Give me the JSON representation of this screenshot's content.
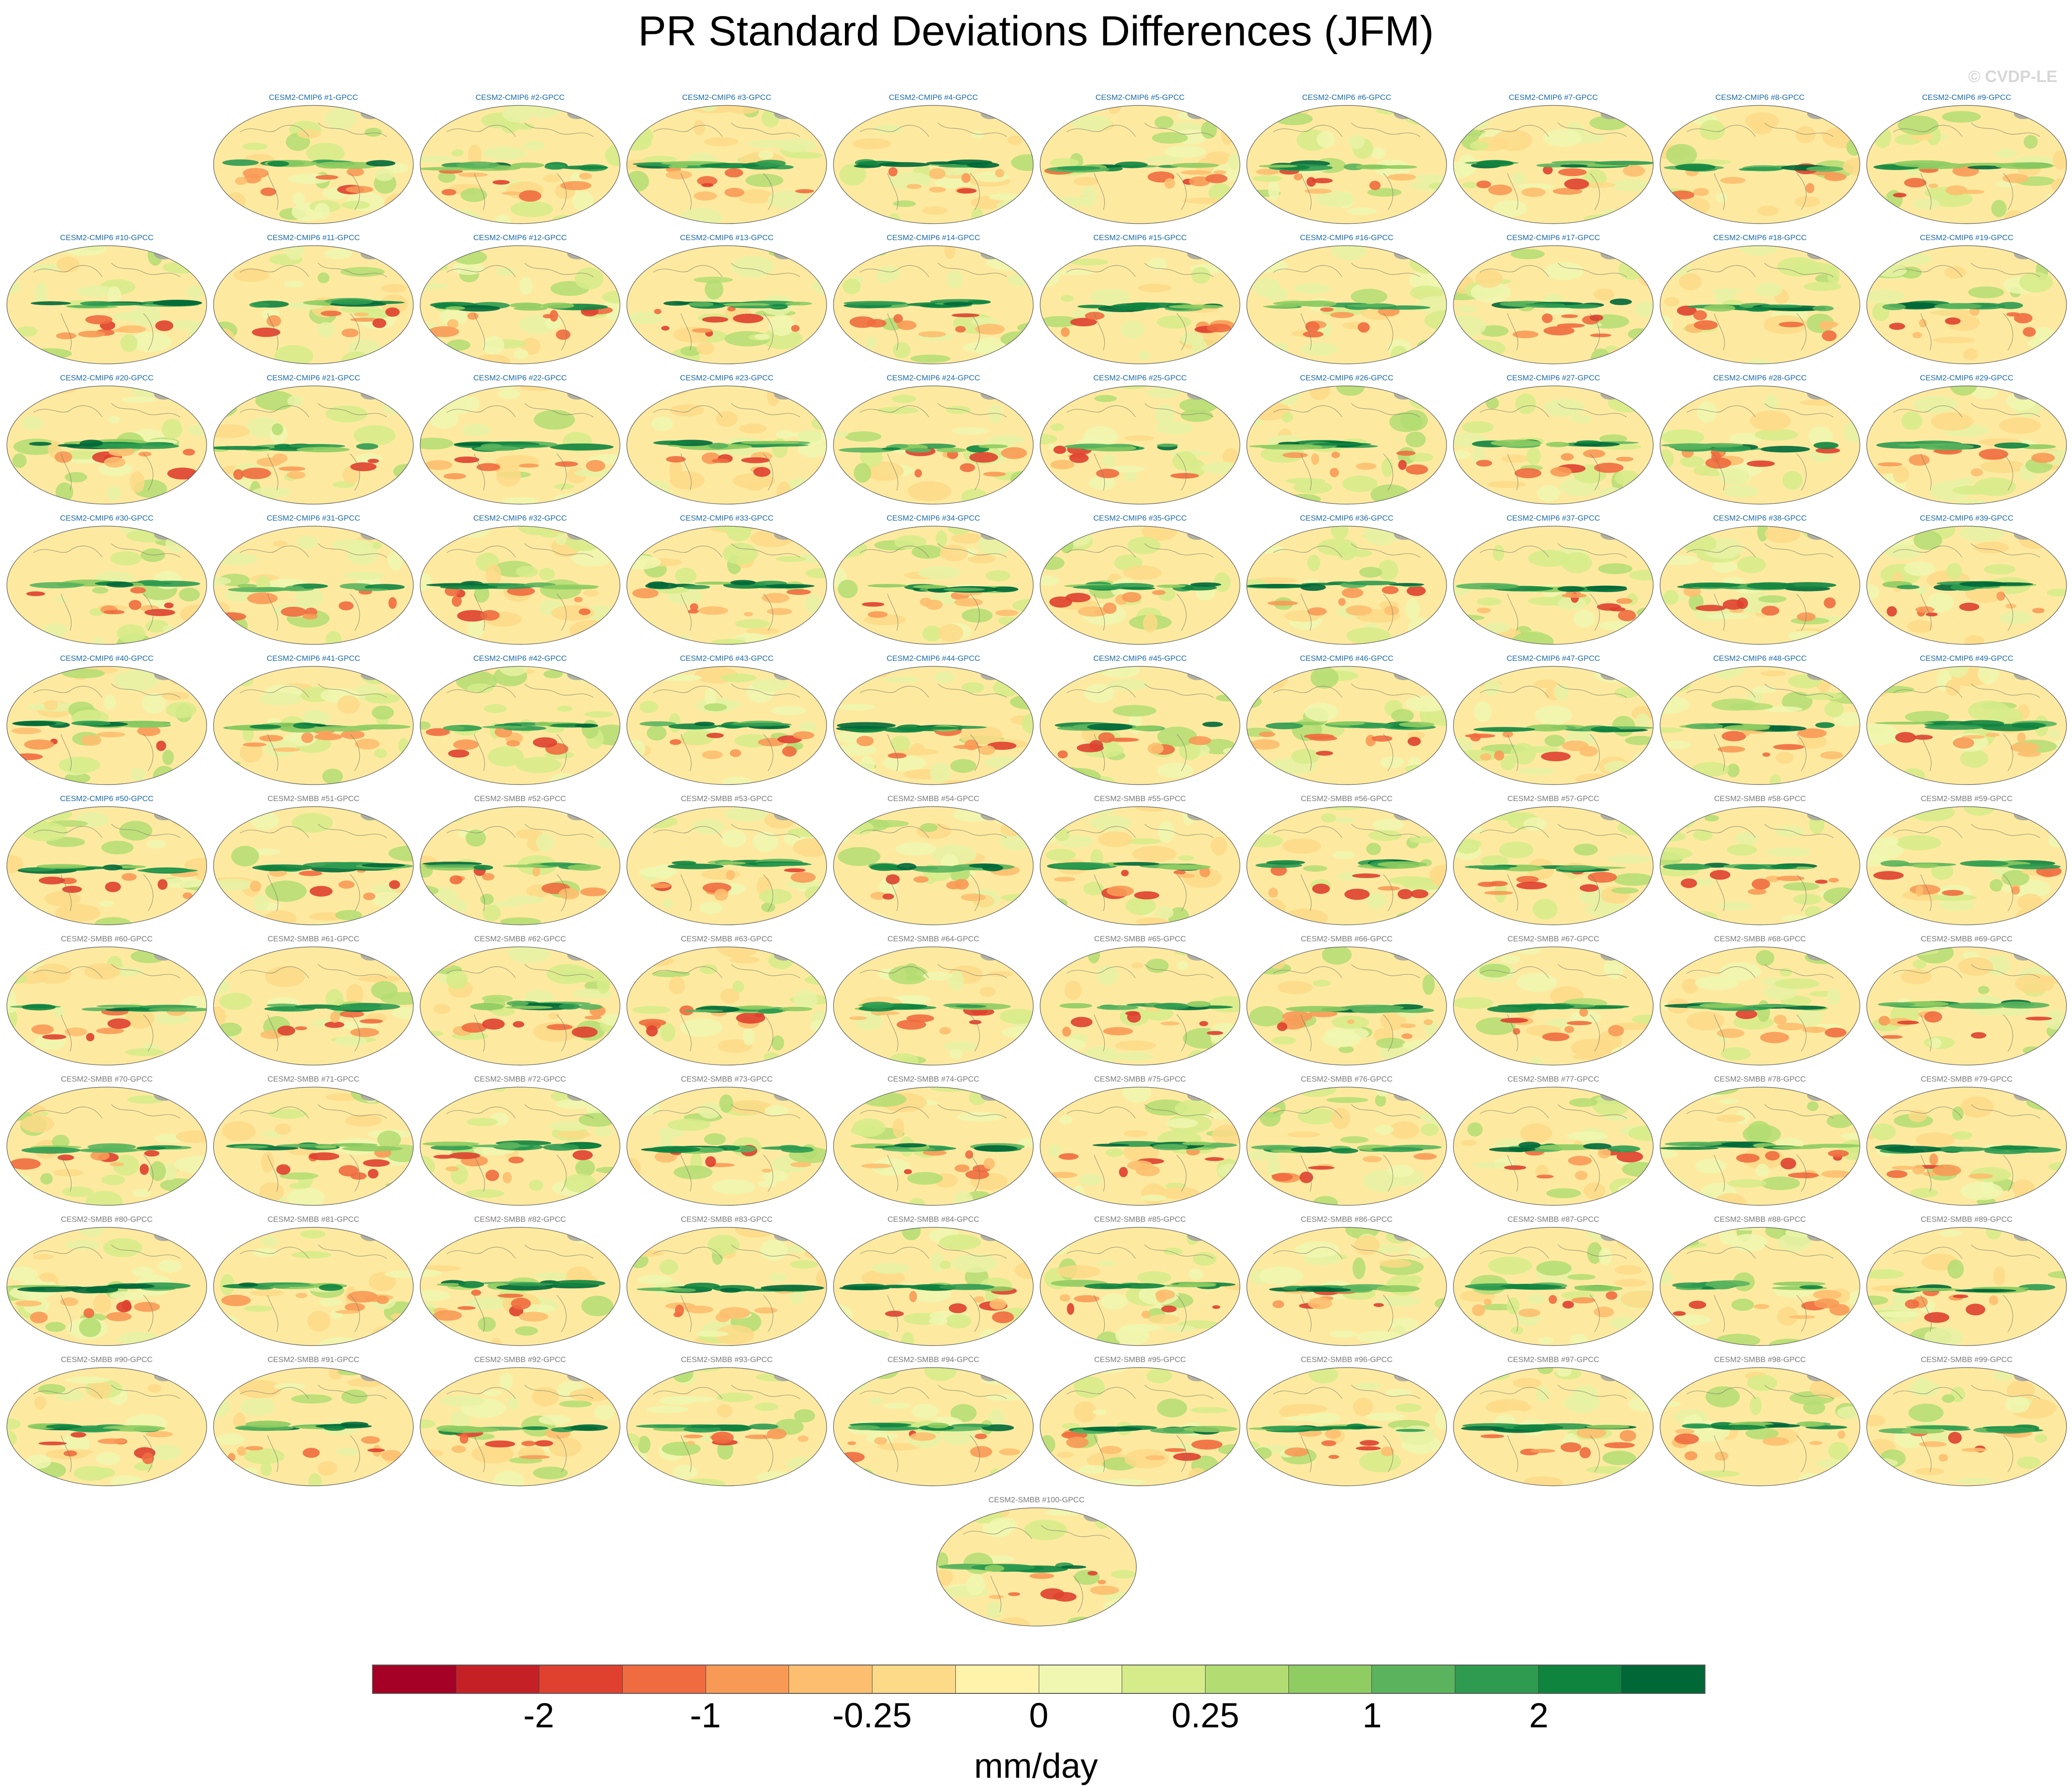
{
  "title": "PR Standard Deviations Differences (JFM)",
  "watermark": "© CVDP-LE",
  "units": "mm/day",
  "colorbar": {
    "colors": [
      "#a50026",
      "#c62027",
      "#df402f",
      "#f06b3f",
      "#f89a56",
      "#fdbf6f",
      "#fdda88",
      "#fff2aa",
      "#f0f7b0",
      "#d6ec8a",
      "#b3dd72",
      "#8fcc62",
      "#5bb45d",
      "#2e9b50",
      "#0f843f",
      "#006837"
    ],
    "tick_labels": [
      "-2",
      "-1",
      "-0.25",
      "0",
      "0.25",
      "1",
      "2"
    ]
  },
  "label_colors": {
    "cmip6": "#1b6aa5",
    "smbb": "#7a7a7a"
  },
  "panels": [
    {
      "label": "CESM2-CMIP6 #1-GPCC",
      "group": "cmip6"
    },
    {
      "label": "CESM2-CMIP6 #2-GPCC",
      "group": "cmip6"
    },
    {
      "label": "CESM2-CMIP6 #3-GPCC",
      "group": "cmip6"
    },
    {
      "label": "CESM2-CMIP6 #4-GPCC",
      "group": "cmip6"
    },
    {
      "label": "CESM2-CMIP6 #5-GPCC",
      "group": "cmip6"
    },
    {
      "label": "CESM2-CMIP6 #6-GPCC",
      "group": "cmip6"
    },
    {
      "label": "CESM2-CMIP6 #7-GPCC",
      "group": "cmip6"
    },
    {
      "label": "CESM2-CMIP6 #8-GPCC",
      "group": "cmip6"
    },
    {
      "label": "CESM2-CMIP6 #9-GPCC",
      "group": "cmip6"
    },
    {
      "label": "CESM2-CMIP6 #10-GPCC",
      "group": "cmip6"
    },
    {
      "label": "CESM2-CMIP6 #11-GPCC",
      "group": "cmip6"
    },
    {
      "label": "CESM2-CMIP6 #12-GPCC",
      "group": "cmip6"
    },
    {
      "label": "CESM2-CMIP6 #13-GPCC",
      "group": "cmip6"
    },
    {
      "label": "CESM2-CMIP6 #14-GPCC",
      "group": "cmip6"
    },
    {
      "label": "CESM2-CMIP6 #15-GPCC",
      "group": "cmip6"
    },
    {
      "label": "CESM2-CMIP6 #16-GPCC",
      "group": "cmip6"
    },
    {
      "label": "CESM2-CMIP6 #17-GPCC",
      "group": "cmip6"
    },
    {
      "label": "CESM2-CMIP6 #18-GPCC",
      "group": "cmip6"
    },
    {
      "label": "CESM2-CMIP6 #19-GPCC",
      "group": "cmip6"
    },
    {
      "label": "CESM2-CMIP6 #20-GPCC",
      "group": "cmip6"
    },
    {
      "label": "CESM2-CMIP6 #21-GPCC",
      "group": "cmip6"
    },
    {
      "label": "CESM2-CMIP6 #22-GPCC",
      "group": "cmip6"
    },
    {
      "label": "CESM2-CMIP6 #23-GPCC",
      "group": "cmip6"
    },
    {
      "label": "CESM2-CMIP6 #24-GPCC",
      "group": "cmip6"
    },
    {
      "label": "CESM2-CMIP6 #25-GPCC",
      "group": "cmip6"
    },
    {
      "label": "CESM2-CMIP6 #26-GPCC",
      "group": "cmip6"
    },
    {
      "label": "CESM2-CMIP6 #27-GPCC",
      "group": "cmip6"
    },
    {
      "label": "CESM2-CMIP6 #28-GPCC",
      "group": "cmip6"
    },
    {
      "label": "CESM2-CMIP6 #29-GPCC",
      "group": "cmip6"
    },
    {
      "label": "CESM2-CMIP6 #30-GPCC",
      "group": "cmip6"
    },
    {
      "label": "CESM2-CMIP6 #31-GPCC",
      "group": "cmip6"
    },
    {
      "label": "CESM2-CMIP6 #32-GPCC",
      "group": "cmip6"
    },
    {
      "label": "CESM2-CMIP6 #33-GPCC",
      "group": "cmip6"
    },
    {
      "label": "CESM2-CMIP6 #34-GPCC",
      "group": "cmip6"
    },
    {
      "label": "CESM2-CMIP6 #35-GPCC",
      "group": "cmip6"
    },
    {
      "label": "CESM2-CMIP6 #36-GPCC",
      "group": "cmip6"
    },
    {
      "label": "CESM2-CMIP6 #37-GPCC",
      "group": "cmip6"
    },
    {
      "label": "CESM2-CMIP6 #38-GPCC",
      "group": "cmip6"
    },
    {
      "label": "CESM2-CMIP6 #39-GPCC",
      "group": "cmip6"
    },
    {
      "label": "CESM2-CMIP6 #40-GPCC",
      "group": "cmip6"
    },
    {
      "label": "CESM2-CMIP6 #41-GPCC",
      "group": "cmip6"
    },
    {
      "label": "CESM2-CMIP6 #42-GPCC",
      "group": "cmip6"
    },
    {
      "label": "CESM2-CMIP6 #43-GPCC",
      "group": "cmip6"
    },
    {
      "label": "CESM2-CMIP6 #44-GPCC",
      "group": "cmip6"
    },
    {
      "label": "CESM2-CMIP6 #45-GPCC",
      "group": "cmip6"
    },
    {
      "label": "CESM2-CMIP6 #46-GPCC",
      "group": "cmip6"
    },
    {
      "label": "CESM2-CMIP6 #47-GPCC",
      "group": "cmip6"
    },
    {
      "label": "CESM2-CMIP6 #48-GPCC",
      "group": "cmip6"
    },
    {
      "label": "CESM2-CMIP6 #49-GPCC",
      "group": "cmip6"
    },
    {
      "label": "CESM2-CMIP6 #50-GPCC",
      "group": "cmip6"
    },
    {
      "label": "CESM2-SMBB #51-GPCC",
      "group": "smbb"
    },
    {
      "label": "CESM2-SMBB #52-GPCC",
      "group": "smbb"
    },
    {
      "label": "CESM2-SMBB #53-GPCC",
      "group": "smbb"
    },
    {
      "label": "CESM2-SMBB #54-GPCC",
      "group": "smbb"
    },
    {
      "label": "CESM2-SMBB #55-GPCC",
      "group": "smbb"
    },
    {
      "label": "CESM2-SMBB #56-GPCC",
      "group": "smbb"
    },
    {
      "label": "CESM2-SMBB #57-GPCC",
      "group": "smbb"
    },
    {
      "label": "CESM2-SMBB #58-GPCC",
      "group": "smbb"
    },
    {
      "label": "CESM2-SMBB #59-GPCC",
      "group": "smbb"
    },
    {
      "label": "CESM2-SMBB #60-GPCC",
      "group": "smbb"
    },
    {
      "label": "CESM2-SMBB #61-GPCC",
      "group": "smbb"
    },
    {
      "label": "CESM2-SMBB #62-GPCC",
      "group": "smbb"
    },
    {
      "label": "CESM2-SMBB #63-GPCC",
      "group": "smbb"
    },
    {
      "label": "CESM2-SMBB #64-GPCC",
      "group": "smbb"
    },
    {
      "label": "CESM2-SMBB #65-GPCC",
      "group": "smbb"
    },
    {
      "label": "CESM2-SMBB #66-GPCC",
      "group": "smbb"
    },
    {
      "label": "CESM2-SMBB #67-GPCC",
      "group": "smbb"
    },
    {
      "label": "CESM2-SMBB #68-GPCC",
      "group": "smbb"
    },
    {
      "label": "CESM2-SMBB #69-GPCC",
      "group": "smbb"
    },
    {
      "label": "CESM2-SMBB #70-GPCC",
      "group": "smbb"
    },
    {
      "label": "CESM2-SMBB #71-GPCC",
      "group": "smbb"
    },
    {
      "label": "CESM2-SMBB #72-GPCC",
      "group": "smbb"
    },
    {
      "label": "CESM2-SMBB #73-GPCC",
      "group": "smbb"
    },
    {
      "label": "CESM2-SMBB #74-GPCC",
      "group": "smbb"
    },
    {
      "label": "CESM2-SMBB #75-GPCC",
      "group": "smbb"
    },
    {
      "label": "CESM2-SMBB #76-GPCC",
      "group": "smbb"
    },
    {
      "label": "CESM2-SMBB #77-GPCC",
      "group": "smbb"
    },
    {
      "label": "CESM2-SMBB #78-GPCC",
      "group": "smbb"
    },
    {
      "label": "CESM2-SMBB #79-GPCC",
      "group": "smbb"
    },
    {
      "label": "CESM2-SMBB #80-GPCC",
      "group": "smbb"
    },
    {
      "label": "CESM2-SMBB #81-GPCC",
      "group": "smbb"
    },
    {
      "label": "CESM2-SMBB #82-GPCC",
      "group": "smbb"
    },
    {
      "label": "CESM2-SMBB #83-GPCC",
      "group": "smbb"
    },
    {
      "label": "CESM2-SMBB #84-GPCC",
      "group": "smbb"
    },
    {
      "label": "CESM2-SMBB #85-GPCC",
      "group": "smbb"
    },
    {
      "label": "CESM2-SMBB #86-GPCC",
      "group": "smbb"
    },
    {
      "label": "CESM2-SMBB #87-GPCC",
      "group": "smbb"
    },
    {
      "label": "CESM2-SMBB #88-GPCC",
      "group": "smbb"
    },
    {
      "label": "CESM2-SMBB #89-GPCC",
      "group": "smbb"
    },
    {
      "label": "CESM2-SMBB #90-GPCC",
      "group": "smbb"
    },
    {
      "label": "CESM2-SMBB #91-GPCC",
      "group": "smbb"
    },
    {
      "label": "CESM2-SMBB #92-GPCC",
      "group": "smbb"
    },
    {
      "label": "CESM2-SMBB #93-GPCC",
      "group": "smbb"
    },
    {
      "label": "CESM2-SMBB #94-GPCC",
      "group": "smbb"
    },
    {
      "label": "CESM2-SMBB #95-GPCC",
      "group": "smbb"
    },
    {
      "label": "CESM2-SMBB #96-GPCC",
      "group": "smbb"
    },
    {
      "label": "CESM2-SMBB #97-GPCC",
      "group": "smbb"
    },
    {
      "label": "CESM2-SMBB #98-GPCC",
      "group": "smbb"
    },
    {
      "label": "CESM2-SMBB #99-GPCC",
      "group": "smbb"
    },
    {
      "label": "CESM2-SMBB #100-GPCC",
      "group": "smbb"
    }
  ]
}
